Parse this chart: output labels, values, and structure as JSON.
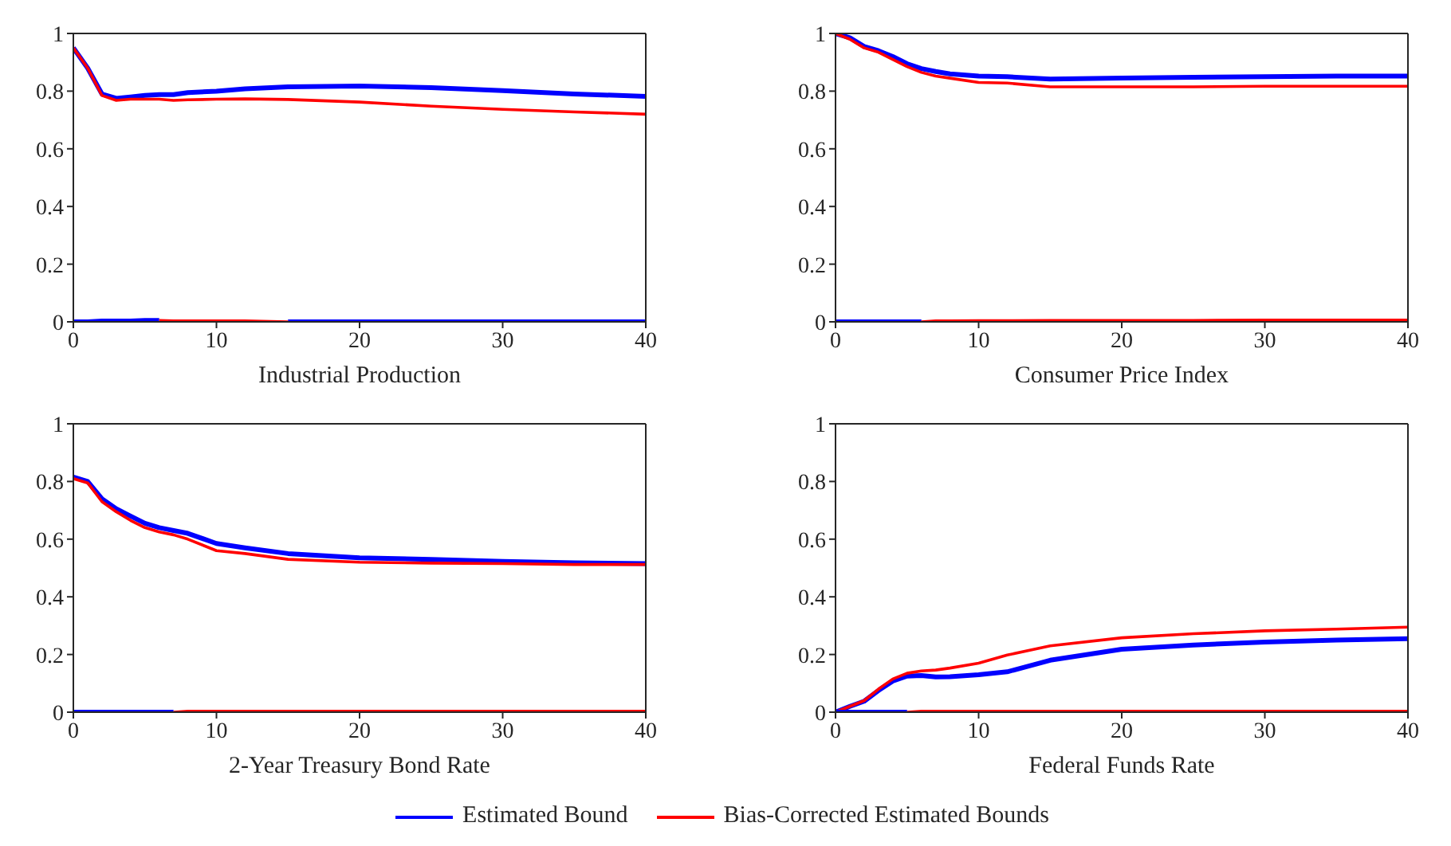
{
  "chart_data": [
    {
      "type": "line",
      "xlabel": "Industrial Production",
      "x": [
        0,
        1,
        2,
        3,
        4,
        5,
        6,
        7,
        8,
        10,
        12,
        15,
        20,
        25,
        30,
        35,
        40
      ],
      "xlim": [
        0,
        40
      ],
      "xticks": [
        0,
        10,
        20,
        30,
        40
      ],
      "ylim": [
        0,
        1
      ],
      "yticks": [
        0,
        0.2,
        0.4,
        0.6,
        0.8,
        1
      ],
      "grid": false,
      "series": [
        {
          "color": "#0000ff",
          "values": [
            0.95,
            0.88,
            0.79,
            0.775,
            0.78,
            0.785,
            0.788,
            0.788,
            0.795,
            0.8,
            0.808,
            0.815,
            0.818,
            0.812,
            0.802,
            0.79,
            0.782
          ]
        },
        {
          "color": "#ff0000",
          "values": [
            0.95,
            0.88,
            0.785,
            0.768,
            0.772,
            0.772,
            0.772,
            0.768,
            0.77,
            0.772,
            0.773,
            0.771,
            0.762,
            0.748,
            0.737,
            0.728,
            0.72
          ]
        },
        {
          "color": "#0000ff",
          "values": [
            0,
            0,
            0.003,
            0.003,
            0.003,
            0.005,
            0.005,
            null,
            null,
            null,
            null,
            0,
            0,
            0,
            0,
            0,
            0
          ]
        },
        {
          "color": "#ff0000",
          "values": [
            null,
            null,
            null,
            null,
            null,
            null,
            0.005,
            0.003,
            0.003,
            0.003,
            0.003,
            0,
            null,
            null,
            null,
            null,
            null
          ]
        }
      ]
    },
    {
      "type": "line",
      "xlabel": "Consumer Price Index",
      "x": [
        0,
        1,
        2,
        3,
        4,
        5,
        6,
        7,
        8,
        10,
        12,
        15,
        20,
        25,
        30,
        35,
        40
      ],
      "xlim": [
        0,
        40
      ],
      "xticks": [
        0,
        10,
        20,
        30,
        40
      ],
      "ylim": [
        0,
        1
      ],
      "yticks": [
        0,
        0.2,
        0.4,
        0.6,
        0.8,
        1
      ],
      "grid": false,
      "series": [
        {
          "color": "#0000ff",
          "values": [
            1,
            0.985,
            0.955,
            0.94,
            0.92,
            0.895,
            0.878,
            0.868,
            0.86,
            0.852,
            0.85,
            0.842,
            0.845,
            0.848,
            0.85,
            0.852,
            0.852
          ]
        },
        {
          "color": "#ff0000",
          "values": [
            1,
            0.98,
            0.95,
            0.935,
            0.91,
            0.885,
            0.865,
            0.852,
            0.845,
            0.83,
            0.828,
            0.815,
            0.815,
            0.815,
            0.817,
            0.817,
            0.817
          ]
        },
        {
          "color": "#0000ff",
          "values": [
            0,
            0,
            0,
            0,
            0,
            0,
            0,
            null,
            null,
            null,
            null,
            null,
            null,
            null,
            null,
            null,
            null
          ]
        },
        {
          "color": "#ff0000",
          "values": [
            null,
            null,
            null,
            null,
            null,
            null,
            0,
            0.003,
            0.003,
            0.004,
            0.004,
            0.005,
            0.005,
            0.005,
            0.006,
            0.006,
            0.006
          ]
        }
      ]
    },
    {
      "type": "line",
      "xlabel": "2-Year Treasury Bond Rate",
      "x": [
        0,
        1,
        2,
        3,
        4,
        5,
        6,
        7,
        8,
        10,
        12,
        15,
        20,
        25,
        30,
        35,
        40
      ],
      "xlim": [
        0,
        40
      ],
      "xticks": [
        0,
        10,
        20,
        30,
        40
      ],
      "ylim": [
        0,
        1
      ],
      "yticks": [
        0,
        0.2,
        0.4,
        0.6,
        0.8,
        1
      ],
      "grid": false,
      "series": [
        {
          "color": "#0000ff",
          "values": [
            0.815,
            0.8,
            0.74,
            0.705,
            0.68,
            0.655,
            0.64,
            0.63,
            0.62,
            0.585,
            0.57,
            0.55,
            0.535,
            0.53,
            0.523,
            0.518,
            0.515
          ]
        },
        {
          "color": "#ff0000",
          "values": [
            0.81,
            0.795,
            0.73,
            0.695,
            0.665,
            0.64,
            0.625,
            0.615,
            0.6,
            0.56,
            0.55,
            0.53,
            0.52,
            0.517,
            0.515,
            0.512,
            0.512
          ]
        },
        {
          "color": "#0000ff",
          "values": [
            0,
            0,
            0,
            0,
            0,
            0,
            0,
            0,
            null,
            null,
            null,
            null,
            null,
            null,
            null,
            null,
            null
          ]
        },
        {
          "color": "#ff0000",
          "values": [
            null,
            null,
            null,
            null,
            null,
            null,
            null,
            0,
            0.003,
            0.003,
            0.003,
            0.003,
            0.003,
            0.003,
            0.003,
            0.003,
            0.003
          ]
        }
      ]
    },
    {
      "type": "line",
      "xlabel": "Federal Funds Rate",
      "x": [
        0,
        1,
        2,
        3,
        4,
        5,
        6,
        7,
        8,
        10,
        12,
        15,
        20,
        25,
        30,
        35,
        40
      ],
      "xlim": [
        0,
        40
      ],
      "xticks": [
        0,
        10,
        20,
        30,
        40
      ],
      "ylim": [
        0,
        1
      ],
      "yticks": [
        0,
        0.2,
        0.4,
        0.6,
        0.8,
        1
      ],
      "grid": false,
      "legend": "bottom",
      "series": [
        {
          "name": "Estimated Bound",
          "color": "#0000ff",
          "values": [
            0,
            0.02,
            0.038,
            0.075,
            0.108,
            0.125,
            0.127,
            0.122,
            0.123,
            0.13,
            0.14,
            0.18,
            0.218,
            0.233,
            0.243,
            0.25,
            0.255
          ]
        },
        {
          "name": "Bias-Corrected Estimated Bounds",
          "color": "#ff0000",
          "values": [
            0,
            0.02,
            0.04,
            0.08,
            0.115,
            0.135,
            0.143,
            0.146,
            0.153,
            0.17,
            0.198,
            0.23,
            0.258,
            0.272,
            0.282,
            0.288,
            0.295
          ]
        },
        {
          "color": "#0000ff",
          "values": [
            0,
            0,
            0,
            0,
            0,
            0,
            null,
            null,
            null,
            null,
            null,
            null,
            null,
            null,
            null,
            null,
            null
          ]
        },
        {
          "color": "#ff0000",
          "values": [
            null,
            null,
            null,
            null,
            null,
            0,
            0.003,
            0.003,
            0.003,
            0.003,
            0.003,
            0.003,
            0.003,
            0.003,
            0.003,
            0.003,
            0.003
          ]
        }
      ]
    }
  ]
}
